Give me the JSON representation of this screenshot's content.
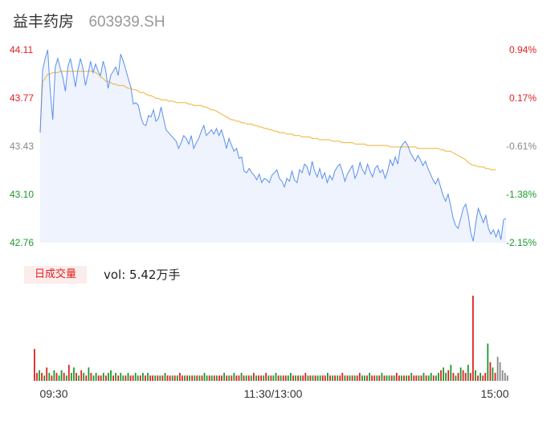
{
  "header": {
    "name": "益丰药房",
    "code": "603939.SH"
  },
  "colors": {
    "up": "#e02020",
    "down": "#1a9a2c",
    "flat": "#888888",
    "price_line": "#5b8ff0",
    "avg_line": "#f2b032",
    "area": "#eef3fd"
  },
  "volume_tab": {
    "label": "日成交量",
    "value_text": "vol: 5.42万手"
  },
  "chart_data": [
    {
      "type": "line",
      "title": "",
      "y_ticks": [
        "44.11",
        "43.77",
        "43.43",
        "43.10",
        "42.76"
      ],
      "y_ticks_pct": [
        "0.94%",
        "0.17%",
        "-0.61%",
        "-1.38%",
        "-2.15%"
      ],
      "ylim": [
        42.76,
        44.11
      ],
      "x_ticks": [
        "09:30",
        "11:30/13:00",
        "15:00"
      ],
      "series": [
        {
          "values": [
            43.53,
            43.97,
            44.05,
            44.11,
            43.83,
            43.62,
            43.99,
            44.05,
            43.98,
            43.92,
            43.82,
            43.99,
            44.05,
            43.96,
            43.85,
            43.97,
            44.05,
            43.98,
            43.86,
            43.94,
            44.03,
            43.95,
            44.01,
            43.96,
            43.93,
            44.03,
            43.97,
            43.84,
            43.93,
            43.96,
            43.99,
            43.93,
            44.08,
            44.03,
            43.97,
            43.91,
            43.85,
            43.73,
            43.74,
            43.72,
            43.64,
            43.59,
            43.58,
            43.65,
            43.64,
            43.69,
            43.61,
            43.63,
            43.71,
            43.63,
            43.55,
            43.53,
            43.51,
            43.49,
            43.47,
            43.42,
            43.46,
            43.51,
            43.49,
            43.45,
            43.51,
            43.42,
            43.46,
            43.49,
            43.54,
            43.58,
            43.51,
            43.53,
            43.55,
            43.52,
            43.56,
            43.51,
            43.55,
            43.49,
            43.42,
            43.49,
            43.44,
            43.4,
            43.42,
            43.35,
            43.36,
            43.26,
            43.25,
            43.28,
            43.25,
            43.23,
            43.2,
            43.24,
            43.18,
            43.21,
            43.2,
            43.18,
            43.23,
            43.25,
            43.27,
            43.21,
            43.19,
            43.15,
            43.21,
            43.19,
            43.26,
            43.2,
            43.18,
            43.27,
            43.25,
            43.31,
            43.29,
            43.23,
            43.33,
            43.26,
            43.22,
            43.28,
            43.21,
            43.25,
            43.18,
            43.23,
            43.2,
            43.26,
            43.29,
            43.31,
            43.26,
            43.19,
            43.24,
            43.27,
            43.3,
            43.21,
            43.25,
            43.32,
            43.27,
            43.24,
            43.31,
            43.26,
            43.22,
            43.28,
            43.3,
            43.25,
            43.27,
            43.21,
            43.26,
            43.34,
            43.3,
            43.36,
            43.31,
            43.42,
            43.45,
            43.47,
            43.44,
            43.39,
            43.36,
            43.33,
            43.37,
            43.34,
            43.3,
            43.33,
            43.28,
            43.24,
            43.2,
            43.17,
            43.21,
            43.15,
            43.09,
            43.05,
            43.1,
            43.02,
            42.93,
            42.88,
            42.86,
            42.93,
            43.0,
            43.03,
            42.95,
            42.83,
            42.77,
            42.9,
            43.0,
            42.95,
            42.9,
            42.95,
            42.86,
            42.82,
            42.85,
            42.8,
            42.85,
            42.78,
            42.92,
            42.93
          ]
        },
        {
          "values": [
            43.53,
            43.89,
            43.91,
            43.94,
            43.94,
            43.95,
            43.95,
            43.95,
            43.96,
            43.96,
            43.96,
            43.96,
            43.96,
            43.96,
            43.96,
            43.96,
            43.96,
            43.96,
            43.96,
            43.96,
            43.96,
            43.96,
            43.95,
            43.94,
            43.92,
            43.91,
            43.89,
            43.89,
            43.88,
            43.87,
            43.87,
            43.86,
            43.86,
            43.86,
            43.85,
            43.84,
            43.84,
            43.83,
            43.83,
            43.82,
            43.81,
            43.81,
            43.8,
            43.79,
            43.79,
            43.78,
            43.77,
            43.77,
            43.76,
            43.76,
            43.76,
            43.75,
            43.75,
            43.75,
            43.74,
            43.74,
            43.74,
            43.74,
            43.74,
            43.73,
            43.73,
            43.72,
            43.72,
            43.72,
            43.72,
            43.71,
            43.71,
            43.7,
            43.69,
            43.69,
            43.68,
            43.67,
            43.66,
            43.65,
            43.64,
            43.63,
            43.62,
            43.62,
            43.61,
            43.61,
            43.6,
            43.6,
            43.59,
            43.59,
            43.59,
            43.58,
            43.58,
            43.57,
            43.57,
            43.56,
            43.56,
            43.55,
            43.55,
            43.54,
            43.54,
            43.53,
            43.53,
            43.53,
            43.52,
            43.52,
            43.52,
            43.51,
            43.51,
            43.51,
            43.5,
            43.5,
            43.5,
            43.5,
            43.49,
            43.49,
            43.49,
            43.48,
            43.48,
            43.48,
            43.48,
            43.48,
            43.47,
            43.47,
            43.47,
            43.47,
            43.46,
            43.46,
            43.46,
            43.46,
            43.46,
            43.45,
            43.45,
            43.45,
            43.45,
            43.45,
            43.44,
            43.44,
            43.44,
            43.44,
            43.44,
            43.44,
            43.44,
            43.44,
            43.44,
            43.43,
            43.43,
            43.43,
            43.43,
            43.43,
            43.43,
            43.43,
            43.43,
            43.43,
            43.43,
            43.43,
            43.42,
            43.42,
            43.42,
            43.42,
            43.42,
            43.42,
            43.42,
            43.42,
            43.42,
            43.41,
            43.41,
            43.4,
            43.4,
            43.4,
            43.39,
            43.38,
            43.37,
            43.36,
            43.35,
            43.34,
            43.32,
            43.31,
            43.3,
            43.3,
            43.29,
            43.29,
            43.29,
            43.28,
            43.28,
            43.27,
            43.27,
            43.27
          ]
        }
      ]
    },
    {
      "type": "bar",
      "title": "",
      "values": [
        12,
        3,
        4,
        3,
        2,
        5,
        3,
        2,
        4,
        3,
        2,
        4,
        3,
        2,
        6,
        3,
        5,
        3,
        2,
        4,
        3,
        2,
        5,
        3,
        2,
        3,
        2,
        2,
        3,
        2,
        3,
        4,
        2,
        3,
        2,
        3,
        2,
        2,
        3,
        2,
        2,
        3,
        2,
        2,
        3,
        2,
        3,
        2,
        2,
        2,
        2,
        2,
        2,
        3,
        2,
        2,
        2,
        2,
        2,
        3,
        2,
        2,
        2,
        2,
        2,
        2,
        2,
        2,
        2,
        3,
        2,
        2,
        2,
        2,
        2,
        2,
        2,
        3,
        2,
        2,
        2,
        3,
        2,
        2,
        3,
        2,
        2,
        2,
        2,
        3,
        2,
        2,
        2,
        2,
        3,
        2,
        2,
        2,
        3,
        2,
        2,
        2,
        2,
        2,
        3,
        2,
        2,
        2,
        2,
        2,
        3,
        2,
        2,
        2,
        2,
        2,
        2,
        2,
        2,
        3,
        2,
        2,
        2,
        2,
        2,
        3,
        2,
        2,
        2,
        2,
        2,
        2,
        3,
        2,
        2,
        2,
        3,
        2,
        2,
        2,
        2,
        3,
        2,
        2,
        2,
        2,
        2,
        3,
        2,
        2,
        2,
        2,
        2,
        3,
        2,
        2,
        2,
        2,
        3,
        2,
        2,
        3,
        2,
        2,
        3,
        4,
        5,
        3,
        4,
        6,
        3,
        2,
        3,
        5,
        4,
        3,
        6,
        3,
        32,
        4,
        2,
        3,
        2,
        3,
        14,
        7,
        5,
        3,
        9,
        7,
        4,
        3,
        2
      ],
      "colors": [
        "up",
        "up",
        "down",
        "up",
        "down",
        "up",
        "down",
        "up",
        "down",
        "up",
        "down",
        "down",
        "up",
        "down",
        "up",
        "down",
        "down",
        "up",
        "down",
        "up",
        "down",
        "up",
        "down",
        "up",
        "down",
        "down",
        "up",
        "up",
        "down",
        "up",
        "down",
        "down",
        "up",
        "down",
        "up",
        "down",
        "down",
        "up",
        "down",
        "up",
        "up",
        "down",
        "down",
        "up",
        "down",
        "up",
        "down",
        "up",
        "up",
        "down",
        "up",
        "down",
        "up",
        "down",
        "up",
        "up",
        "down",
        "up",
        "down",
        "up",
        "up",
        "down",
        "up",
        "down",
        "up",
        "down",
        "up",
        "down",
        "up",
        "down",
        "down",
        "up",
        "down",
        "up",
        "down",
        "up",
        "up",
        "down",
        "up",
        "down",
        "up",
        "down",
        "up",
        "up",
        "down",
        "up",
        "down",
        "up",
        "down",
        "up",
        "down",
        "up",
        "up",
        "down",
        "up",
        "down",
        "up",
        "down",
        "down",
        "up",
        "down",
        "up",
        "up",
        "down",
        "down",
        "up",
        "down",
        "up",
        "down",
        "up",
        "up",
        "down",
        "up",
        "down",
        "up",
        "down",
        "down",
        "up",
        "up",
        "down",
        "up",
        "down",
        "up",
        "down",
        "up",
        "up",
        "down",
        "up",
        "down",
        "up",
        "down",
        "up",
        "up",
        "down",
        "down",
        "up",
        "down",
        "up",
        "up",
        "down",
        "up",
        "down",
        "up",
        "down",
        "down",
        "up",
        "down",
        "up",
        "up",
        "down",
        "up",
        "down",
        "up",
        "down",
        "up",
        "up",
        "down",
        "up",
        "down",
        "up",
        "down",
        "down",
        "up",
        "down",
        "down",
        "up",
        "down",
        "down",
        "up",
        "down",
        "up",
        "down",
        "up",
        "down",
        "up",
        "up",
        "down",
        "up",
        "up",
        "down",
        "up",
        "down",
        "up",
        "up",
        "down",
        "up",
        "down",
        "up",
        "flat"
      ]
    }
  ]
}
